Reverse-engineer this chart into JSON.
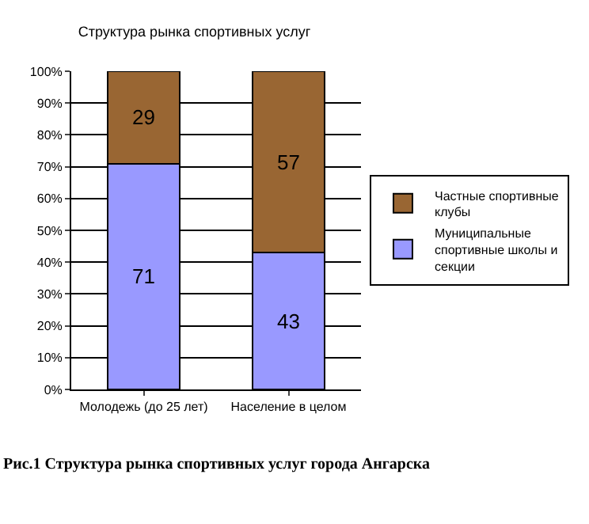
{
  "chart_data": {
    "type": "bar",
    "stacked": true,
    "title": "Структура рынка спортивных услуг",
    "categories": [
      "Молодежь (до 25 лет)",
      "Население в целом"
    ],
    "series": [
      {
        "name": "Муниципальные спортивные школы и секции",
        "color": "#9999ff",
        "values": [
          71,
          43
        ]
      },
      {
        "name": "Частные спортивные клубы",
        "color": "#996633",
        "values": [
          29,
          57
        ]
      }
    ],
    "ylim": [
      0,
      100
    ],
    "yticks": [
      {
        "value": 0,
        "label": "0%"
      },
      {
        "value": 10,
        "label": "10%"
      },
      {
        "value": 20,
        "label": "20%"
      },
      {
        "value": 30,
        "label": "30%"
      },
      {
        "value": 40,
        "label": "40%"
      },
      {
        "value": 50,
        "label": "50%"
      },
      {
        "value": 60,
        "label": "60%"
      },
      {
        "value": 70,
        "label": "70%"
      },
      {
        "value": 80,
        "label": "80%"
      },
      {
        "value": 90,
        "label": "90%"
      },
      {
        "value": 100,
        "label": "100%"
      }
    ],
    "grid": "y",
    "legend": "right",
    "data_labels": true,
    "annotations": [
      "Рис.1 Структура рынка спортивных услуг города Ангарска"
    ]
  }
}
